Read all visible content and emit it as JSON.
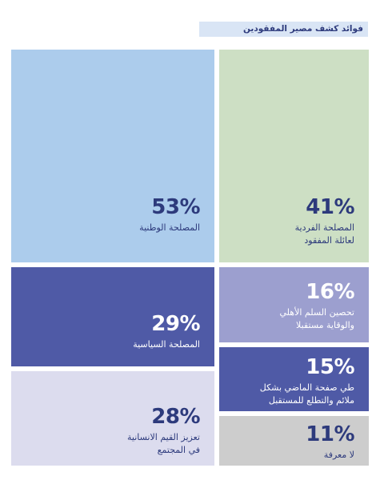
{
  "chart_data": {
    "type": "treemap",
    "title": "فوائد كشف مصير المفقودين",
    "items": [
      {
        "label": "المصلحة الوطنية",
        "value": 53,
        "color": "#acccec",
        "text_color": "#2d3a7c"
      },
      {
        "label": "المصلحة الفردية\nلعائلة المفقود",
        "value": 41,
        "color": "#cddfc4",
        "text_color": "#2d3a7c"
      },
      {
        "label": "المصلحة السياسية",
        "value": 29,
        "color": "#4f5aa6",
        "text_color": "#ffffff"
      },
      {
        "label": "تحصين السلم الأهلي\nوالوقاية مستقبلا",
        "value": 16,
        "color": "#9c9fcf",
        "text_color": "#ffffff"
      },
      {
        "label": "طي صفحة الماضي بشكل\nملائم والتطلع للمستقبل",
        "value": 15,
        "color": "#4f5aa6",
        "text_color": "#ffffff"
      },
      {
        "label": "تعزيز القيم الانسانية\nفي المجتمع",
        "value": 28,
        "color": "#dcdcee",
        "text_color": "#2d3a7c"
      },
      {
        "label": "لا معرفة",
        "value": 11,
        "color": "#cdcdcd",
        "text_color": "#2d3a7c"
      }
    ]
  }
}
